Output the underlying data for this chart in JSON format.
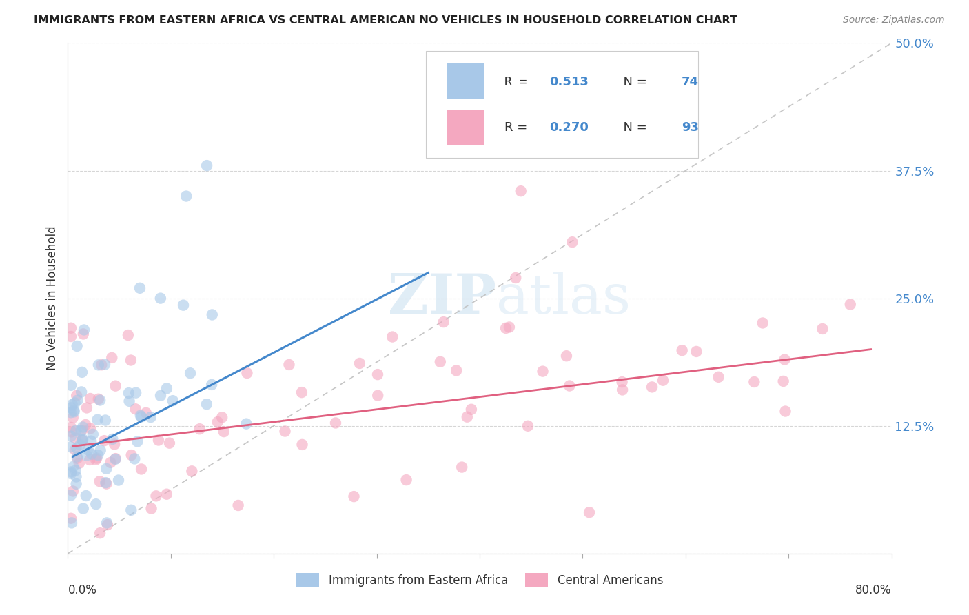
{
  "title": "IMMIGRANTS FROM EASTERN AFRICA VS CENTRAL AMERICAN NO VEHICLES IN HOUSEHOLD CORRELATION CHART",
  "source": "Source: ZipAtlas.com",
  "ylabel": "No Vehicles in Household",
  "blue_R": 0.513,
  "blue_N": 74,
  "pink_R": 0.27,
  "pink_N": 93,
  "blue_color": "#a8c8e8",
  "pink_color": "#f4a8c0",
  "blue_line_color": "#4488cc",
  "pink_line_color": "#e06080",
  "diagonal_color": "#c0c0c0",
  "background_color": "#ffffff",
  "watermark": "ZIPatlas",
  "legend_bottom_blue": "Immigrants from Eastern Africa",
  "legend_bottom_pink": "Central Americans",
  "xlim": [
    0.0,
    0.8
  ],
  "ylim": [
    0.0,
    0.5
  ],
  "blue_line_x0": 0.005,
  "blue_line_x1": 0.35,
  "blue_line_y0": 0.095,
  "blue_line_y1": 0.275,
  "pink_line_x0": 0.005,
  "pink_line_x1": 0.78,
  "pink_line_y0": 0.105,
  "pink_line_y1": 0.2
}
